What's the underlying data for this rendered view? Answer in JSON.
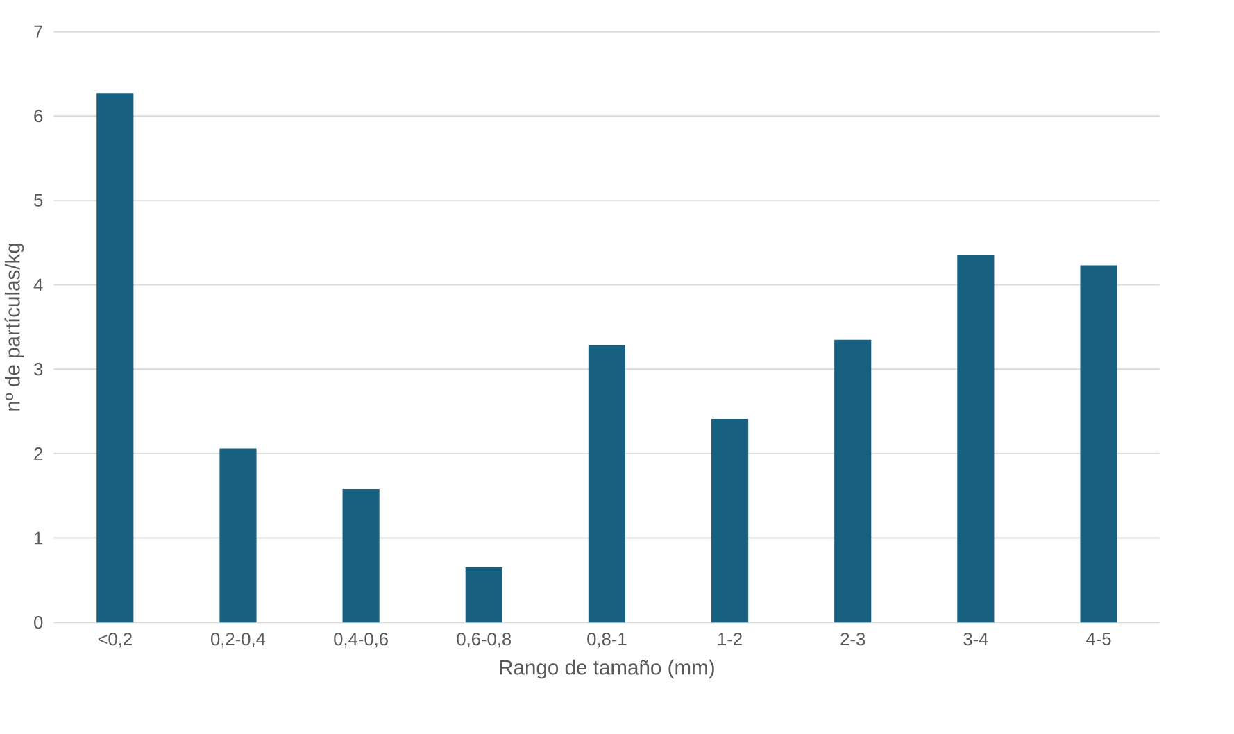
{
  "chart_data": {
    "type": "bar",
    "xlabel": "Rango de tamaño (mm)",
    "ylabel": "nº de partículas/kg",
    "categories": [
      "<0,2",
      "0,2-0,4",
      "0,4-0,6",
      "0,6-0,8",
      "0,8-1",
      "1-2",
      "2-3",
      "3-4",
      "4-5"
    ],
    "values": [
      6.27,
      2.06,
      1.58,
      0.65,
      3.29,
      2.41,
      3.35,
      4.35,
      4.23
    ],
    "color": "#17607f",
    "ylim": [
      0,
      7
    ],
    "yticks": [
      0,
      1,
      2,
      3,
      4,
      5,
      6,
      7
    ],
    "grid": "y"
  }
}
